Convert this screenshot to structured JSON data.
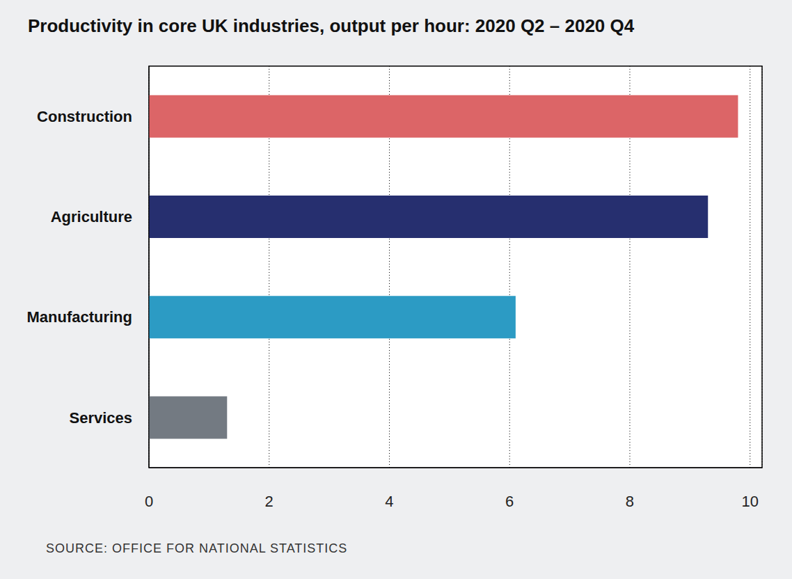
{
  "chart_data": {
    "type": "bar",
    "title": "Productivity in core UK industries, output per hour: 2020 Q2 – 2020 Q4",
    "source": "SOURCE: OFFICE FOR NATIONAL STATISTICS",
    "orientation": "horizontal",
    "categories": [
      "Construction",
      "Agriculture",
      "Manufacturing",
      "Services"
    ],
    "values": [
      9.8,
      9.3,
      6.1,
      1.3
    ],
    "colors": [
      "#dc6567",
      "#262f6f",
      "#2c9bc4",
      "#737a82"
    ],
    "xlim": [
      0,
      10.2
    ],
    "xticks": [
      0,
      2,
      4,
      6,
      8,
      10
    ],
    "grid": true
  }
}
